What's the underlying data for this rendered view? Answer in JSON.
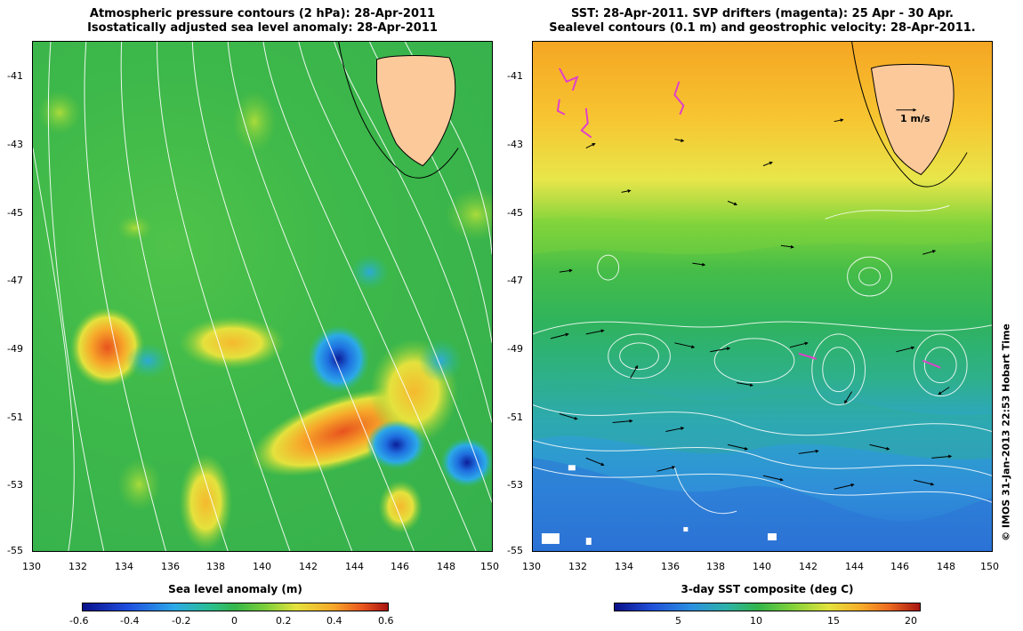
{
  "left_panel": {
    "title_line1": "Atmospheric pressure contours (2 hPa): 28-Apr-2011",
    "title_line2": "Isostatically adjusted sea level anomaly: 28-Apr-2011",
    "colorbar_label": "Sea level anomaly (m)",
    "colorbar_ticks": [
      "-0.6",
      "-0.4",
      "-0.2",
      "0",
      "0.2",
      "0.4",
      "0.6"
    ],
    "colorbar_range": [
      -0.6,
      0.6
    ]
  },
  "right_panel": {
    "title_line1": "SST: 28-Apr-2011. SVP drifters (magenta): 25 Apr - 30 Apr.",
    "title_line2": "Sealevel contours (0.1 m) and geostrophic velocity: 28-Apr-2011.",
    "colorbar_label": "3-day SST composite (deg C)",
    "colorbar_ticks": [
      "5",
      "10",
      "15",
      "20"
    ],
    "colorbar_range": [
      0,
      20
    ],
    "velocity_scale_label": "1 m/s"
  },
  "axes": {
    "lat_ticks": [
      "-41",
      "-43",
      "-45",
      "-47",
      "-49",
      "-51",
      "-53",
      "-55"
    ],
    "lon_ticks": [
      "130",
      "132",
      "134",
      "136",
      "138",
      "140",
      "142",
      "144",
      "146",
      "148",
      "150"
    ],
    "lat_range": [
      -55,
      -40
    ],
    "lon_range": [
      130,
      150
    ]
  },
  "credit": "© IMOS 31-Jan-2013 22:53 Hobart Time",
  "colors": {
    "land": "#fcc99b",
    "contour": "#ffffff",
    "drifter": "#e040c8"
  }
}
